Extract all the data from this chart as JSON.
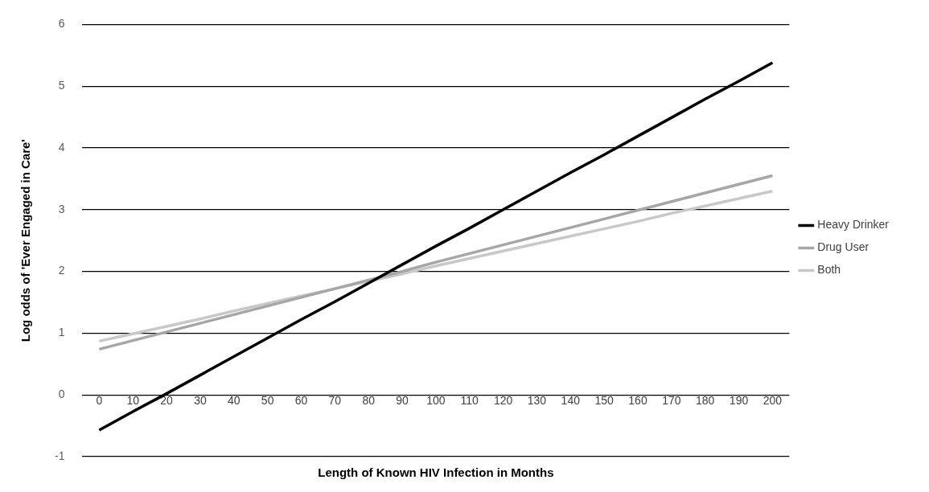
{
  "chart_data": {
    "type": "line",
    "xlabel": "Length of Known HIV Infection in Months",
    "ylabel": "Log odds of 'Ever Engaged in Care'",
    "categories": [
      "0",
      "10",
      "20",
      "30",
      "40",
      "50",
      "60",
      "70",
      "80",
      "90",
      "100",
      "110",
      "120",
      "130",
      "140",
      "150",
      "160",
      "170",
      "180",
      "190",
      "200"
    ],
    "ylim": [
      -1,
      6
    ],
    "yticks": [
      -1,
      0,
      1,
      2,
      3,
      4,
      5,
      6
    ],
    "grid": "y",
    "legend": "right",
    "marker": "none",
    "line_style": "solid",
    "series": [
      {
        "name": "Heavy Drinker",
        "color": "#000000",
        "values": [
          -0.57,
          -0.27,
          0.02,
          0.32,
          0.62,
          0.92,
          1.22,
          1.51,
          1.81,
          2.11,
          2.41,
          2.7,
          3.0,
          3.3,
          3.6,
          3.89,
          4.19,
          4.49,
          4.79,
          5.08,
          5.38
        ]
      },
      {
        "name": "Drug User",
        "color": "#a6a6a6",
        "values": [
          0.74,
          0.88,
          1.02,
          1.16,
          1.3,
          1.44,
          1.58,
          1.72,
          1.86,
          2.0,
          2.15,
          2.29,
          2.43,
          2.57,
          2.71,
          2.85,
          2.99,
          3.13,
          3.27,
          3.41,
          3.55
        ]
      },
      {
        "name": "Both",
        "color": "#c8c8c8",
        "values": [
          0.87,
          0.99,
          1.11,
          1.23,
          1.36,
          1.48,
          1.6,
          1.72,
          1.84,
          1.96,
          2.09,
          2.21,
          2.33,
          2.45,
          2.57,
          2.69,
          2.81,
          2.94,
          3.06,
          3.18,
          3.3
        ]
      }
    ]
  }
}
